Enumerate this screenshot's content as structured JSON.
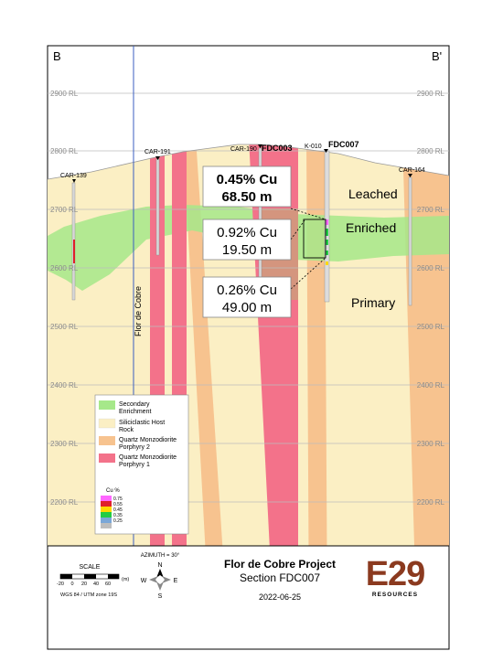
{
  "corners": {
    "left": "B",
    "right": "B'"
  },
  "rl_labels": [
    "2900 RL",
    "2800 RL",
    "2700 RL",
    "2600 RL",
    "2500 RL",
    "2400 RL",
    "2300 RL",
    "2200 RL"
  ],
  "drillholes": {
    "car139": "CAR-139",
    "car191": "CAR-191",
    "car190": "CAR-190",
    "fdc003": "FDC003",
    "k010": "K-010",
    "fdc007": "FDC007",
    "car164": "CAR-164"
  },
  "zone_labels": {
    "leached": "Leached",
    "enriched": "Enriched",
    "primary": "Primary"
  },
  "fault_label": "Flor de Cobre",
  "intercepts": [
    {
      "grade": "0.45% Cu",
      "length": "68.50 m"
    },
    {
      "grade": "0.92% Cu",
      "length": "19.50 m"
    },
    {
      "grade": "0.26% Cu",
      "length": "49.00 m"
    }
  ],
  "legend": {
    "items": [
      {
        "line1": "Secondary",
        "line2": "Enrichment",
        "color": "#a6e88a"
      },
      {
        "line1": "Siliciclastic Host",
        "line2": "Rock",
        "color": "#fbefc4"
      },
      {
        "line1": "Quartz Monzodiorite",
        "line2": "Porphyry 2",
        "color": "#f7c38f"
      },
      {
        "line1": "Quartz Monzodiorite",
        "line2": "Porphyry 1",
        "color": "#f3728a"
      }
    ],
    "cu_title": "Cu %",
    "cu_values": [
      "0.75",
      "0.55",
      "0.45",
      "0.35",
      "0.25"
    ],
    "cu_colors": [
      "#ff66ff",
      "#e0202a",
      "#ffd800",
      "#22cc44",
      "#7aa7d8"
    ]
  },
  "scale": {
    "title": "SCALE",
    "ticks": [
      "-20",
      "0",
      "20",
      "40",
      "60"
    ],
    "unit": "(m)",
    "crs": "WGS 84 / UTM zone 19S"
  },
  "compass": {
    "azimuth": "AZIMUTH = 30°",
    "n": "N",
    "s": "S",
    "e": "E",
    "w": "W"
  },
  "title_block": {
    "project": "Flor de Cobre Project",
    "section": "Section FDC007",
    "date": "2022-06-25"
  },
  "logo": {
    "mark": "E29",
    "sub": "RESOURCES",
    "color": "#8b3a1f"
  }
}
